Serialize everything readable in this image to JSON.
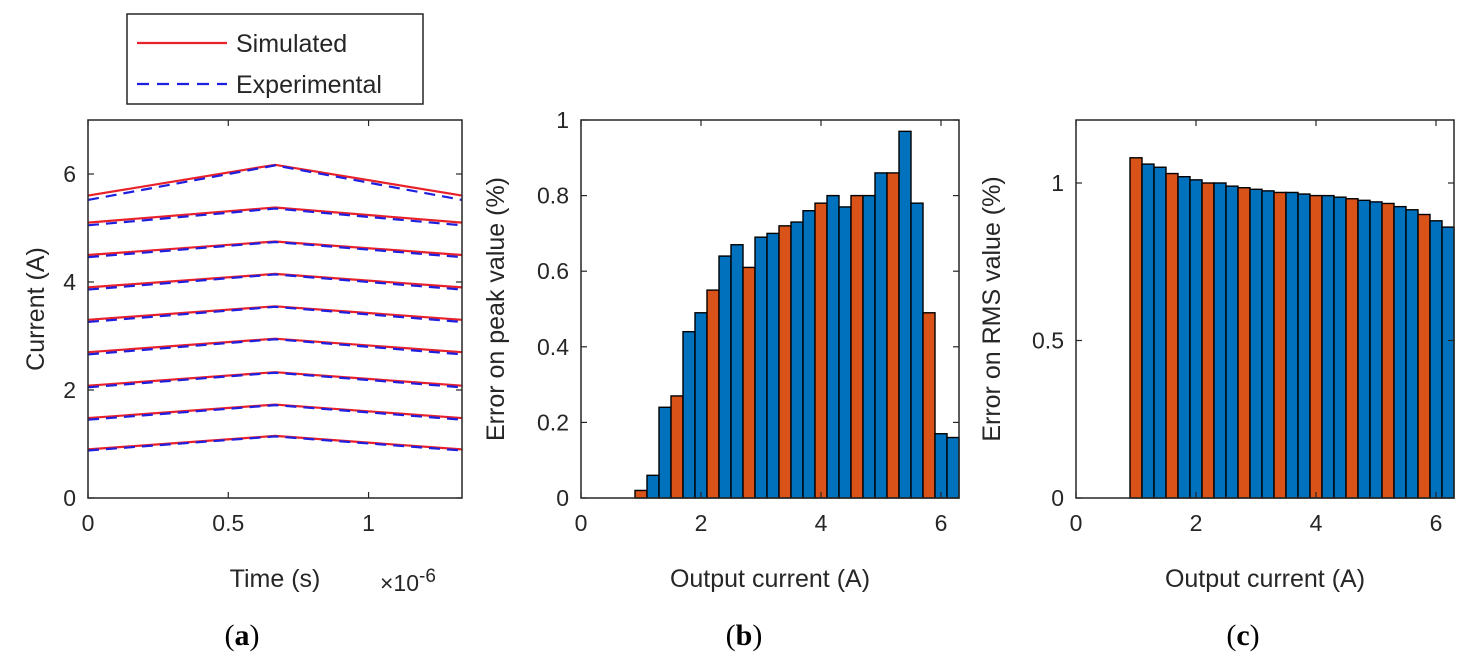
{
  "chart_data": [
    {
      "id": "a",
      "type": "line",
      "caption_letter": "a",
      "xlabel": "Time (s)",
      "ylabel": "Current (A)",
      "x_exponent_label": "×10",
      "x_exponent": "-6",
      "xlim": [
        0,
        1.333
      ],
      "ylim": [
        0,
        7
      ],
      "xticks": [
        0,
        0.5,
        1
      ],
      "xtick_labels": [
        "0",
        "0.5",
        "1"
      ],
      "yticks": [
        0,
        2,
        4,
        6
      ],
      "ytick_labels": [
        "0",
        "2",
        "4",
        "6"
      ],
      "legend": {
        "position": "top-outside",
        "entries": [
          {
            "label": "Simulated",
            "style": "solid",
            "color": "#e8212a"
          },
          {
            "label": "Experimental",
            "style": "dashed",
            "color": "#1f1fe0"
          }
        ]
      },
      "x_points": [
        0,
        0.667,
        1.333
      ],
      "series": [
        {
          "name": "Simulated",
          "color": "#e8212a",
          "style": "solid",
          "curves": [
            [
              0.9,
              1.15,
              0.9
            ],
            [
              1.48,
              1.73,
              1.48
            ],
            [
              2.08,
              2.33,
              2.08
            ],
            [
              2.7,
              2.95,
              2.7
            ],
            [
              3.3,
              3.55,
              3.3
            ],
            [
              3.9,
              4.15,
              3.9
            ],
            [
              4.5,
              4.75,
              4.5
            ],
            [
              5.1,
              5.38,
              5.1
            ],
            [
              5.6,
              6.17,
              5.6
            ]
          ]
        },
        {
          "name": "Experimental",
          "color": "#1f1fe0",
          "style": "dashed",
          "curves": [
            [
              0.88,
              1.14,
              0.88
            ],
            [
              1.45,
              1.72,
              1.45
            ],
            [
              2.05,
              2.32,
              2.05
            ],
            [
              2.66,
              2.94,
              2.66
            ],
            [
              3.26,
              3.54,
              3.26
            ],
            [
              3.86,
              4.14,
              3.86
            ],
            [
              4.46,
              4.74,
              4.46
            ],
            [
              5.05,
              5.36,
              5.05
            ],
            [
              5.52,
              6.16,
              5.52
            ]
          ]
        }
      ]
    },
    {
      "id": "b",
      "type": "bar",
      "caption_letter": "b",
      "xlabel": "Output current (A)",
      "ylabel": "Error on peak value (%)",
      "xlim": [
        0,
        6.3
      ],
      "ylim": [
        0,
        1
      ],
      "xticks": [
        0,
        2,
        4,
        6
      ],
      "xtick_labels": [
        "0",
        "2",
        "4",
        "6"
      ],
      "yticks": [
        0,
        0.2,
        0.4,
        0.6,
        0.8,
        1
      ],
      "ytick_labels": [
        "0",
        "0.2",
        "0.4",
        "0.6",
        "0.8",
        "1"
      ],
      "bar_width": 0.2,
      "x": [
        1.0,
        1.2,
        1.4,
        1.6,
        1.8,
        2.0,
        2.2,
        2.4,
        2.6,
        2.8,
        3.0,
        3.2,
        3.4,
        3.6,
        3.8,
        4.0,
        4.2,
        4.4,
        4.6,
        4.8,
        5.0,
        5.2,
        5.4,
        5.6,
        5.8,
        6.0,
        6.2
      ],
      "values": [
        0.02,
        0.06,
        0.24,
        0.27,
        0.44,
        0.49,
        0.55,
        0.64,
        0.67,
        0.61,
        0.69,
        0.7,
        0.72,
        0.73,
        0.76,
        0.78,
        0.8,
        0.77,
        0.8,
        0.8,
        0.86,
        0.86,
        0.97,
        0.78,
        0.49,
        0.17,
        0.16
      ],
      "colors": [
        "#d95319",
        "#0072bd",
        "#0072bd",
        "#d95319",
        "#0072bd",
        "#0072bd",
        "#d95319",
        "#0072bd",
        "#0072bd",
        "#d95319",
        "#0072bd",
        "#0072bd",
        "#d95319",
        "#0072bd",
        "#0072bd",
        "#d95319",
        "#0072bd",
        "#0072bd",
        "#d95319",
        "#0072bd",
        "#0072bd",
        "#d95319",
        "#0072bd",
        "#0072bd",
        "#d95319",
        "#0072bd",
        "#0072bd"
      ]
    },
    {
      "id": "c",
      "type": "bar",
      "caption_letter": "c",
      "xlabel": "Output current (A)",
      "ylabel": "Error on RMS value (%)",
      "xlim": [
        0,
        6.3
      ],
      "ylim": [
        0,
        1.2
      ],
      "xticks": [
        0,
        2,
        4,
        6
      ],
      "xtick_labels": [
        "0",
        "2",
        "4",
        "6"
      ],
      "yticks": [
        0,
        0.5,
        1
      ],
      "ytick_labels": [
        "0",
        "0.5",
        "1"
      ],
      "bar_width": 0.2,
      "x": [
        1.0,
        1.2,
        1.4,
        1.6,
        1.8,
        2.0,
        2.2,
        2.4,
        2.6,
        2.8,
        3.0,
        3.2,
        3.4,
        3.6,
        3.8,
        4.0,
        4.2,
        4.4,
        4.6,
        4.8,
        5.0,
        5.2,
        5.4,
        5.6,
        5.8,
        6.0,
        6.2
      ],
      "values": [
        1.08,
        1.06,
        1.05,
        1.03,
        1.02,
        1.01,
        1.0,
        1.0,
        0.99,
        0.985,
        0.98,
        0.975,
        0.97,
        0.97,
        0.965,
        0.96,
        0.96,
        0.955,
        0.95,
        0.945,
        0.94,
        0.935,
        0.925,
        0.915,
        0.9,
        0.88,
        0.86
      ],
      "colors": [
        "#d95319",
        "#0072bd",
        "#0072bd",
        "#d95319",
        "#0072bd",
        "#0072bd",
        "#d95319",
        "#0072bd",
        "#0072bd",
        "#d95319",
        "#0072bd",
        "#0072bd",
        "#d95319",
        "#0072bd",
        "#0072bd",
        "#d95319",
        "#0072bd",
        "#0072bd",
        "#d95319",
        "#0072bd",
        "#0072bd",
        "#d95319",
        "#0072bd",
        "#0072bd",
        "#d95319",
        "#0072bd",
        "#0072bd"
      ]
    }
  ]
}
